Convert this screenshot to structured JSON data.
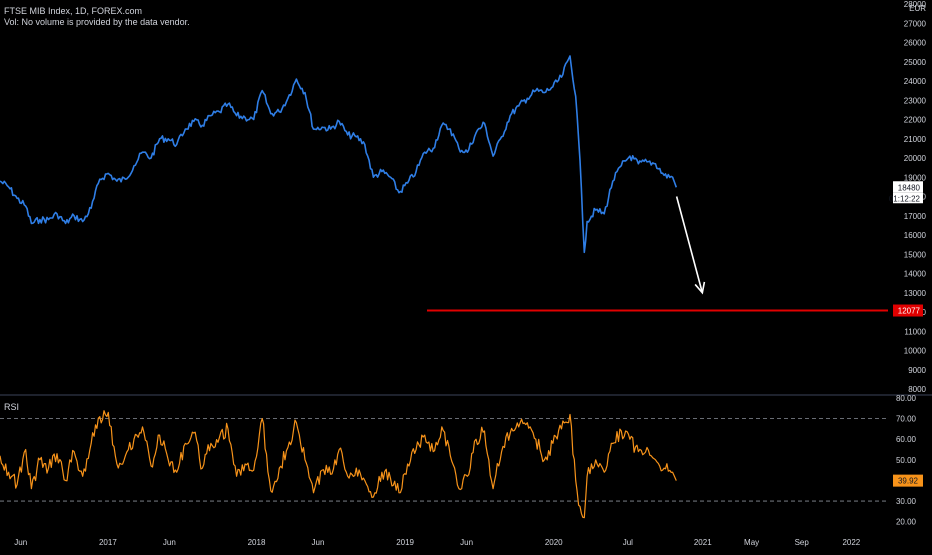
{
  "header": {
    "title": "FTSE MIB Index, 1D, FOREX.com",
    "volume_note": "Vol: No volume is provided by the data vendor.",
    "currency": "EUR"
  },
  "rsi_panel": {
    "label": "RSI"
  },
  "colors": {
    "price_line": "#2f7ee6",
    "rsi_line": "#f7931a",
    "target_line": "#e10000",
    "arrow": "#ffffff",
    "axis_text": "#d1d4dc",
    "background": "#000000"
  },
  "chart_data": [
    {
      "type": "line",
      "title": "FTSE MIB Index, 1D, FOREX.com",
      "series": [
        {
          "name": "FTSE MIB Index",
          "x": [
            "2016-04-11",
            "2016-05-02",
            "2016-05-23",
            "2016-06-13",
            "2016-06-27",
            "2016-07-18",
            "2016-08-08",
            "2016-08-29",
            "2016-09-19",
            "2016-10-10",
            "2016-10-31",
            "2016-11-21",
            "2016-12-12",
            "2017-01-02",
            "2017-01-23",
            "2017-02-13",
            "2017-03-06",
            "2017-03-27",
            "2017-04-17",
            "2017-05-08",
            "2017-05-29",
            "2017-06-19",
            "2017-07-10",
            "2017-07-31",
            "2017-08-21",
            "2017-09-11",
            "2017-10-02",
            "2017-10-23",
            "2017-11-13",
            "2017-12-04",
            "2017-12-25",
            "2018-01-15",
            "2018-02-05",
            "2018-02-26",
            "2018-03-19",
            "2018-04-09",
            "2018-04-30",
            "2018-05-21",
            "2018-06-11",
            "2018-07-02",
            "2018-07-23",
            "2018-08-13",
            "2018-09-03",
            "2018-09-24",
            "2018-10-15",
            "2018-11-05",
            "2018-11-26",
            "2018-12-17",
            "2019-01-07",
            "2019-01-28",
            "2019-02-18",
            "2019-03-11",
            "2019-04-01",
            "2019-04-22",
            "2019-05-13",
            "2019-06-03",
            "2019-06-24",
            "2019-07-15",
            "2019-08-05",
            "2019-08-26",
            "2019-09-16",
            "2019-10-07",
            "2019-10-28",
            "2019-11-18",
            "2019-12-09",
            "2019-12-30",
            "2020-01-20",
            "2020-02-10",
            "2020-02-24",
            "2020-03-02",
            "2020-03-09",
            "2020-03-16",
            "2020-03-23",
            "2020-04-13",
            "2020-05-04",
            "2020-05-25",
            "2020-06-15",
            "2020-07-06",
            "2020-07-27",
            "2020-08-17",
            "2020-09-07",
            "2020-09-28",
            "2020-10-19",
            "2020-10-28"
          ],
          "values": [
            18800,
            18500,
            17900,
            17500,
            16600,
            16800,
            16800,
            17100,
            16600,
            17000,
            16700,
            17400,
            18900,
            19200,
            18800,
            18900,
            19600,
            20300,
            20000,
            21000,
            21000,
            20700,
            21500,
            21900,
            21700,
            22200,
            22400,
            22800,
            22200,
            22100,
            22000,
            23500,
            22300,
            22400,
            23100,
            24100,
            23400,
            21500,
            21600,
            21500,
            21900,
            21200,
            21100,
            20700,
            19000,
            19300,
            19000,
            18200,
            18700,
            19300,
            20300,
            20500,
            21700,
            21500,
            20500,
            20300,
            21300,
            21800,
            20100,
            21100,
            22200,
            22700,
            23100,
            23500,
            23400,
            23700,
            24200,
            25300,
            23200,
            21000,
            18400,
            15100,
            16700,
            17300,
            17100,
            18800,
            19600,
            20100,
            19700,
            19800,
            19700,
            19100,
            19000,
            18480
          ]
        }
      ],
      "ylabel": "EUR",
      "ylim": [
        8000,
        28000
      ],
      "y_ticks": [
        "28000",
        "27000",
        "26000",
        "25000",
        "24000",
        "23000",
        "22000",
        "21000",
        "20000",
        "19000",
        "18000",
        "17000",
        "16000",
        "15000",
        "14000",
        "13000",
        "12000",
        "11000",
        "10000",
        "9000",
        "8000"
      ],
      "last_value_label": "18480",
      "countdown_label": "01:12:22",
      "horizontal_line": {
        "value": 12077,
        "label": "12077"
      },
      "projection_arrow": {
        "from": [
          "2020-10-19",
          18000
        ],
        "to": [
          "2020-12-31",
          13000
        ]
      },
      "grid": false
    },
    {
      "type": "line",
      "title": "RSI",
      "series": [
        {
          "name": "RSI",
          "x": [
            "2016-04-11",
            "2016-05-02",
            "2016-05-23",
            "2016-06-13",
            "2016-06-27",
            "2016-07-18",
            "2016-08-08",
            "2016-08-29",
            "2016-09-19",
            "2016-10-10",
            "2016-10-31",
            "2016-11-21",
            "2016-12-12",
            "2017-01-02",
            "2017-01-23",
            "2017-02-13",
            "2017-03-06",
            "2017-03-27",
            "2017-04-17",
            "2017-05-08",
            "2017-05-29",
            "2017-06-19",
            "2017-07-10",
            "2017-07-31",
            "2017-08-21",
            "2017-09-11",
            "2017-10-02",
            "2017-10-23",
            "2017-11-13",
            "2017-12-04",
            "2017-12-25",
            "2018-01-15",
            "2018-02-05",
            "2018-02-26",
            "2018-03-19",
            "2018-04-09",
            "2018-04-30",
            "2018-05-21",
            "2018-06-11",
            "2018-07-02",
            "2018-07-23",
            "2018-08-13",
            "2018-09-03",
            "2018-09-24",
            "2018-10-15",
            "2018-11-05",
            "2018-11-26",
            "2018-12-17",
            "2019-01-07",
            "2019-01-28",
            "2019-02-18",
            "2019-03-11",
            "2019-04-01",
            "2019-04-22",
            "2019-05-13",
            "2019-06-03",
            "2019-06-24",
            "2019-07-15",
            "2019-08-05",
            "2019-08-26",
            "2019-09-16",
            "2019-10-07",
            "2019-10-28",
            "2019-11-18",
            "2019-12-09",
            "2019-12-30",
            "2020-01-20",
            "2020-02-10",
            "2020-02-24",
            "2020-03-02",
            "2020-03-09",
            "2020-03-16",
            "2020-03-23",
            "2020-04-13",
            "2020-05-04",
            "2020-05-25",
            "2020-06-15",
            "2020-07-06",
            "2020-07-27",
            "2020-08-17",
            "2020-09-07",
            "2020-09-28",
            "2020-10-19",
            "2020-10-28"
          ],
          "values": [
            52,
            44,
            38,
            55,
            36,
            50,
            46,
            53,
            40,
            54,
            42,
            58,
            71,
            73,
            48,
            52,
            60,
            66,
            47,
            62,
            50,
            44,
            58,
            63,
            46,
            58,
            61,
            65,
            42,
            48,
            45,
            70,
            35,
            46,
            56,
            68,
            50,
            34,
            45,
            43,
            55,
            42,
            46,
            40,
            32,
            44,
            41,
            34,
            48,
            55,
            62,
            54,
            66,
            52,
            36,
            42,
            60,
            64,
            36,
            54,
            63,
            66,
            68,
            60,
            50,
            58,
            65,
            72,
            40,
            28,
            24,
            22,
            42,
            50,
            44,
            58,
            64,
            60,
            54,
            56,
            50,
            46,
            44,
            39.92
          ]
        }
      ],
      "ylim": [
        15,
        80
      ],
      "y_ticks": [
        "80.00",
        "70.00",
        "60.00",
        "50.00",
        "40.00",
        "30.00",
        "20.00"
      ],
      "reference_lines": [
        70,
        30
      ],
      "last_value_label": "39.92",
      "grid": false
    }
  ],
  "x_axis": {
    "ticks": [
      {
        "label": "Jun",
        "date": "2016-06-01"
      },
      {
        "label": "2017",
        "date": "2017-01-01"
      },
      {
        "label": "Jun",
        "date": "2017-06-01"
      },
      {
        "label": "2018",
        "date": "2018-01-01"
      },
      {
        "label": "Jun",
        "date": "2018-06-01"
      },
      {
        "label": "2019",
        "date": "2019-01-01"
      },
      {
        "label": "Jun",
        "date": "2019-06-01"
      },
      {
        "label": "2020",
        "date": "2020-01-01"
      },
      {
        "label": "Jul",
        "date": "2020-07-01"
      },
      {
        "label": "2021",
        "date": "2021-01-01"
      },
      {
        "label": "May",
        "date": "2021-05-01"
      },
      {
        "label": "Sep",
        "date": "2021-09-01"
      },
      {
        "label": "2022",
        "date": "2022-01-01"
      }
    ]
  }
}
